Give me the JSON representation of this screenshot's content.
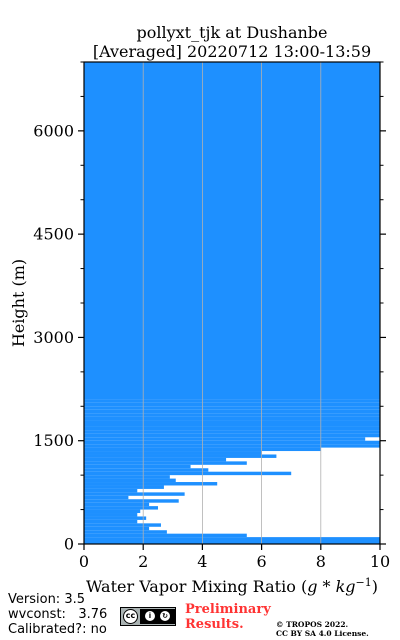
{
  "chart_data": {
    "type": "bar",
    "orientation": "horizontal",
    "title_line1": "pollyxt_tjk at Dushanbe",
    "title_line2": "[Averaged] 20220712 13:00-13:59",
    "xlabel": "Water Vapor Mixing Ratio ($g*kg^{-1}$)",
    "ylabel": "Height (m)",
    "xlim": [
      0,
      10
    ],
    "ylim": [
      0,
      7000
    ],
    "xticks": [
      0,
      2,
      4,
      6,
      8,
      10
    ],
    "xtick_labels": [
      "0",
      "2",
      "4",
      "6",
      "8",
      "10"
    ],
    "yticks": [
      0,
      1500,
      3000,
      4500,
      6000
    ],
    "ytick_labels": [
      "0",
      "1500",
      "3000",
      "4500",
      "6000"
    ],
    "y_minor_step": 500,
    "x_grid": true,
    "bar_color": "#1e90ff",
    "series": [
      {
        "height": [
          100,
          150,
          200,
          250,
          300,
          350,
          400,
          450,
          500,
          550,
          600,
          650,
          700,
          750,
          800,
          850,
          900,
          950,
          1000,
          1050,
          1100,
          1150,
          1200,
          1250,
          1300,
          1350,
          1400,
          1450,
          1500,
          1550,
          1600,
          1650,
          1700,
          1750,
          1800,
          1850,
          1900,
          1950,
          2000,
          2050,
          2100
        ],
        "value": [
          10,
          5.5,
          2.8,
          2.2,
          2.6,
          1.8,
          2.1,
          1.8,
          1.9,
          2.5,
          2.2,
          3.2,
          1.5,
          3.4,
          1.8,
          2.7,
          4.5,
          3.1,
          2.9,
          7.0,
          4.2,
          3.6,
          5.5,
          4.8,
          6.5,
          6.0,
          8.0,
          10,
          10,
          9.5,
          10,
          10,
          10,
          10,
          10,
          10,
          10,
          10,
          10,
          10,
          10
        ]
      }
    ]
  },
  "footer": {
    "version": "Version: 3.5",
    "wvconst": "wvconst:   3.76",
    "calibrated": "Calibrated?: no",
    "license_badge": "cc-by-sa-badge",
    "preliminary_line1": "Preliminary",
    "preliminary_line2": "Results.",
    "copyright_line1": "© TROPOS 2022.",
    "copyright_line2": "CC BY SA 4.0 License."
  }
}
